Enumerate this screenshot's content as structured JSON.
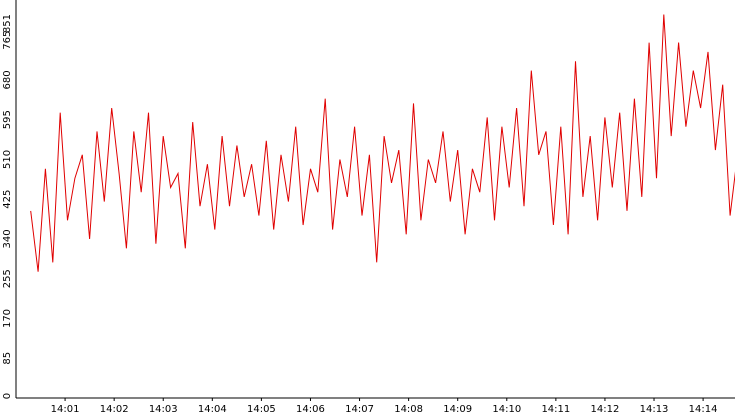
{
  "chart_data": {
    "type": "line",
    "title": "",
    "xlabel": "",
    "ylabel": "",
    "ylim": [
      0,
      851
    ],
    "yticks": [
      0,
      85,
      170,
      255,
      340,
      425,
      510,
      595,
      680,
      765,
      851
    ],
    "xlim_minutes": [
      0,
      14.65
    ],
    "xticks": [
      "14:01",
      "14:02",
      "14:03",
      "14:04",
      "14:05",
      "14:06",
      "14:07",
      "14:08",
      "14:09",
      "14:10",
      "14:11",
      "14:12",
      "14:13",
      "14:14"
    ],
    "grid": false,
    "line_color": "#e00000",
    "series": [
      {
        "x": [
          "14:00:18",
          "14:00:27",
          "14:00:36",
          "14:00:45",
          "14:00:54",
          "14:01:03",
          "14:01:12",
          "14:01:21",
          "14:01:30",
          "14:01:39",
          "14:01:48",
          "14:01:57",
          "14:02:06",
          "14:02:15",
          "14:02:24",
          "14:02:33",
          "14:02:42",
          "14:02:51",
          "14:03:00",
          "14:03:09",
          "14:03:18",
          "14:03:27",
          "14:03:36",
          "14:03:45",
          "14:03:54",
          "14:04:03",
          "14:04:12",
          "14:04:21",
          "14:04:30",
          "14:04:39",
          "14:04:48",
          "14:04:57",
          "14:05:06",
          "14:05:15",
          "14:05:24",
          "14:05:33",
          "14:05:42",
          "14:05:51",
          "14:06:00",
          "14:06:09",
          "14:06:18",
          "14:06:27",
          "14:06:36",
          "14:06:45",
          "14:06:54",
          "14:07:03",
          "14:07:12",
          "14:07:21",
          "14:07:30",
          "14:07:39",
          "14:07:48",
          "14:07:57",
          "14:08:06",
          "14:08:15",
          "14:08:24",
          "14:08:33",
          "14:08:42",
          "14:08:51",
          "14:09:00",
          "14:09:09",
          "14:09:18",
          "14:09:27",
          "14:09:36",
          "14:09:45",
          "14:09:54",
          "14:10:03",
          "14:10:12",
          "14:10:21",
          "14:10:30",
          "14:10:39",
          "14:10:48",
          "14:10:57",
          "14:11:06",
          "14:11:15",
          "14:11:24",
          "14:11:33",
          "14:11:42",
          "14:11:51",
          "14:12:00",
          "14:12:09",
          "14:12:18",
          "14:12:27",
          "14:12:36",
          "14:12:45",
          "14:12:54",
          "14:13:03",
          "14:13:12",
          "14:13:21",
          "14:13:30",
          "14:13:39",
          "14:13:48",
          "14:13:57",
          "14:14:06",
          "14:14:15",
          "14:14:24",
          "14:14:33",
          "14:14:42"
        ],
        "values": [
          400,
          270,
          490,
          290,
          610,
          380,
          470,
          520,
          340,
          570,
          420,
          620,
          480,
          320,
          570,
          440,
          610,
          330,
          560,
          450,
          480,
          320,
          590,
          410,
          500,
          360,
          560,
          410,
          540,
          430,
          500,
          390,
          550,
          360,
          520,
          420,
          580,
          370,
          490,
          440,
          640,
          360,
          510,
          430,
          580,
          390,
          520,
          290,
          560,
          460,
          530,
          350,
          630,
          380,
          510,
          460,
          570,
          420,
          530,
          350,
          490,
          440,
          600,
          380,
          580,
          450,
          620,
          410,
          700,
          520,
          570,
          370,
          580,
          350,
          720,
          430,
          560,
          380,
          600,
          450,
          610,
          400,
          640,
          430,
          760,
          470,
          820,
          560,
          760,
          580,
          700,
          620,
          740,
          530,
          670,
          390,
          520
        ]
      }
    ]
  }
}
